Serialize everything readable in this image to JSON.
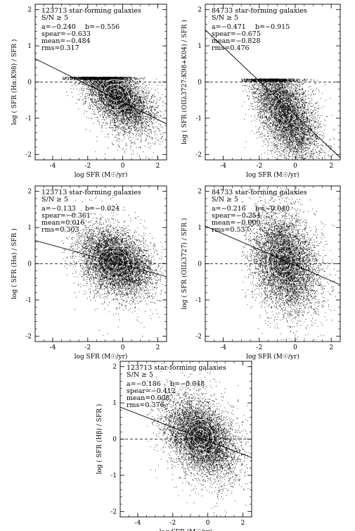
{
  "chart_data": [
    {
      "type": "scatter",
      "header": "123713 star-forming galaxies",
      "sn": "S/N ≥ 5",
      "stats": {
        "a": "a=−0.240",
        "b": "b=−0.556",
        "spear": "spear=−0.633",
        "mean": "mean=−0.484",
        "rms": "rms=0.317"
      },
      "xlabel": "log SFR (M☉/yr)",
      "ylabel": "log ( SFR (Hα:K98) / SFR )",
      "xlim": [
        -5,
        2.5
      ],
      "ylim": [
        -2.15,
        2.15
      ],
      "xticks": [
        -4,
        -2,
        0,
        2
      ],
      "yticks": [
        -2,
        -1,
        0,
        1,
        2
      ],
      "fit": {
        "slope": -0.24,
        "intercept": -0.556,
        "x": [
          -5,
          2.5
        ]
      },
      "cloud": {
        "center": [
          -0.4,
          -0.35
        ],
        "spread": [
          0.95,
          0.38
        ],
        "tilt": -0.3,
        "xrange": [
          -3.5,
          2.3
        ],
        "cap": 0.15
      }
    },
    {
      "type": "scatter",
      "header": "84733 star-forming galaxies",
      "sn": "S/N ≥ 5",
      "stats": {
        "a": "a=−0.471",
        "b": "b=−0.915",
        "spear": "spear=−0.675",
        "mean": "mean=−0.828",
        "rms": "rms=0.476"
      },
      "xlabel": "log SFR (M☉/yr)",
      "ylabel": "log ( SFR (OIIλ3727:K98+K04) / SFR )",
      "xlim": [
        -5,
        2.5
      ],
      "ylim": [
        -2.15,
        2.15
      ],
      "xticks": [
        -4,
        -2,
        0,
        2
      ],
      "yticks": [
        -2,
        -1,
        0,
        1,
        2
      ],
      "fit": {
        "slope": -0.471,
        "intercept": -0.915,
        "x": [
          -5,
          2.5
        ]
      },
      "cloud": {
        "center": [
          -0.6,
          -0.8
        ],
        "spread": [
          0.85,
          0.55
        ],
        "tilt": -0.45,
        "xrange": [
          -3,
          2.3
        ],
        "cap": 0.1
      }
    },
    {
      "type": "scatter",
      "header": "123713 star-forming galaxies",
      "sn": "S/N ≥ 5",
      "stats": {
        "a": "a=−0.133",
        "b": "b=−0.024",
        "spear": "spear=−0.361",
        "mean": "mean=0.016",
        "rms": "rms=0.303"
      },
      "xlabel": "log SFR (M☉/yr)",
      "ylabel": "log ( SFR (Hα) / SFR )",
      "xlim": [
        -5,
        2.5
      ],
      "ylim": [
        -2.15,
        2.15
      ],
      "xticks": [
        -4,
        -2,
        0,
        2
      ],
      "yticks": [
        -2,
        -1,
        0,
        1,
        2
      ],
      "fit": {
        "slope": -0.133,
        "intercept": -0.024,
        "x": [
          -5,
          2.5
        ]
      },
      "cloud": {
        "center": [
          -0.4,
          0.05
        ],
        "spread": [
          0.95,
          0.4
        ],
        "tilt": -0.15,
        "xrange": [
          -3.5,
          2.3
        ],
        "cap": null
      }
    },
    {
      "type": "scatter",
      "header": "84733 star-forming galaxies",
      "sn": "S/N ≥ 5",
      "stats": {
        "a": "a=−0.216",
        "b": "b=−0.040",
        "spear": "spear=−0.254",
        "mean": "mean=−0.000",
        "rms": "rms=0.537"
      },
      "xlabel": "log SFR (M☉/yr)",
      "ylabel": "log ( SFR (OIIλ3727) / SFR )",
      "xlim": [
        -5,
        2.5
      ],
      "ylim": [
        -2.15,
        2.15
      ],
      "xticks": [
        -4,
        -2,
        0,
        2
      ],
      "yticks": [
        -2,
        -1,
        0,
        1,
        2
      ],
      "fit": {
        "slope": -0.216,
        "intercept": -0.04,
        "x": [
          -5,
          2.5
        ]
      },
      "cloud": {
        "center": [
          -0.6,
          0.05
        ],
        "spread": [
          0.85,
          0.6
        ],
        "tilt": -0.2,
        "xrange": [
          -3,
          2.3
        ],
        "cap": null
      }
    },
    {
      "type": "scatter",
      "header": "123713 star-forming galaxies",
      "sn": "S/N ≥ 5",
      "stats": {
        "a": "a=−0.186",
        "b": "b=−0.048",
        "spear": "spear=−0.412",
        "mean": "mean=0.008",
        "rms": "rms=0.376"
      },
      "xlabel": "log SFR (M☉/yr)",
      "ylabel": "log ( SFR (Hβ) / SFR )",
      "xlim": [
        -5,
        2.5
      ],
      "ylim": [
        -2.15,
        2.15
      ],
      "xticks": [
        -4,
        -2,
        0,
        2
      ],
      "yticks": [
        -2,
        -1,
        0,
        1,
        2
      ],
      "fit": {
        "slope": -0.186,
        "intercept": -0.048,
        "x": [
          -5,
          2.5
        ]
      },
      "cloud": {
        "center": [
          -0.4,
          0.05
        ],
        "spread": [
          0.95,
          0.45
        ],
        "tilt": -0.2,
        "xrange": [
          -3.5,
          2.3
        ],
        "cap": null
      }
    }
  ]
}
